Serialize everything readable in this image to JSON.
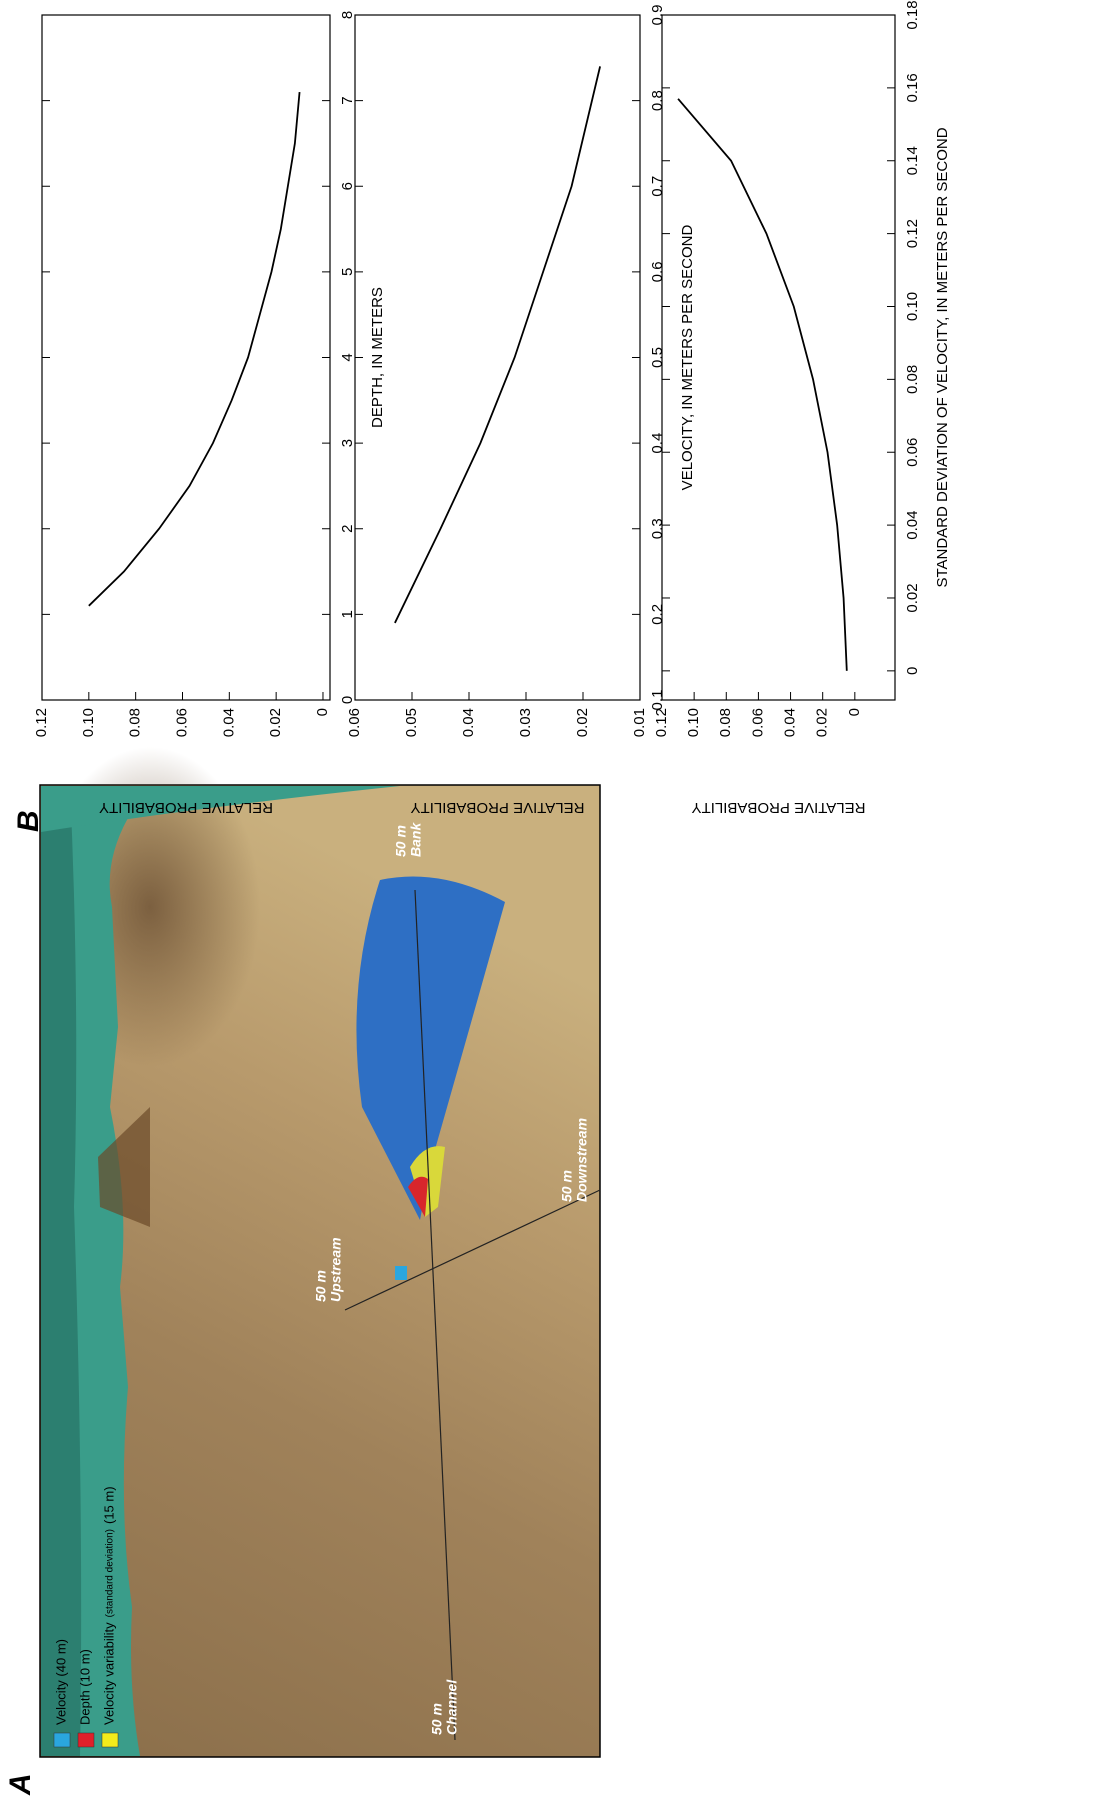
{
  "panel_a": {
    "label": "A",
    "legend": [
      {
        "parts": [
          "Velocity (40 m)"
        ],
        "color": "#2aa6df"
      },
      {
        "parts": [
          "Depth (10 m)"
        ],
        "color": "#e0202a"
      },
      {
        "parts": [
          "Velocity variability",
          "(standard deviation)",
          "(15 m)"
        ],
        "color": "#f2ec1c"
      }
    ],
    "annotations": [
      {
        "lines": [
          "50 m",
          "Channel"
        ]
      },
      {
        "lines": [
          "50 m",
          "Upstream"
        ]
      },
      {
        "lines": [
          "50 m",
          "Downstream"
        ]
      },
      {
        "lines": [
          "50 m",
          "Bank"
        ]
      }
    ]
  },
  "panel_b": {
    "label": "B"
  },
  "chart_data": [
    {
      "type": "line",
      "xlabel": "DEPTH, IN METERS",
      "ylabel": "RELATIVE PROBABILITY",
      "color": "#000000",
      "x": [
        1.1,
        1.5,
        2,
        2.5,
        3,
        3.5,
        4,
        4.5,
        5,
        5.5,
        6,
        6.5,
        7.1
      ],
      "values": [
        0.1,
        0.085,
        0.07,
        0.057,
        0.047,
        0.039,
        0.032,
        0.027,
        0.022,
        0.018,
        0.015,
        0.012,
        0.01
      ],
      "xlim": [
        0,
        8
      ],
      "xticks": [
        0,
        1,
        2,
        3,
        4,
        5,
        6,
        7,
        8
      ],
      "ylim": [
        -0.003,
        0.12
      ],
      "yticks": [
        0,
        0.02,
        0.04,
        0.06,
        0.08,
        {
          "value": 0.1,
          "label": "0.10"
        },
        0.12
      ]
    },
    {
      "type": "line",
      "xlabel": "VELOCITY, IN METERS PER SECOND",
      "ylabel": "RELATIVE PROBABILITY",
      "color": "#000000",
      "x": [
        0.19,
        0.3,
        0.4,
        0.5,
        0.6,
        0.7,
        0.84
      ],
      "values": [
        0.053,
        0.045,
        0.038,
        0.032,
        0.027,
        0.022,
        0.017
      ],
      "xlim": [
        0.1,
        0.9
      ],
      "xticks": [
        0.1,
        0.2,
        0.3,
        0.4,
        0.5,
        0.6,
        0.7,
        0.8,
        0.9
      ],
      "ylim": [
        0.01,
        0.06
      ],
      "yticks": [
        0.01,
        0.02,
        0.03,
        0.04,
        0.05,
        0.06
      ]
    },
    {
      "type": "line",
      "xlabel": "STANDARD DEVIATION OF VELOCITY, IN METERS PER SECOND",
      "ylabel": "RELATIVE PROBABILITY",
      "color": "#000000",
      "x": [
        0,
        0.02,
        0.04,
        0.06,
        0.08,
        0.1,
        0.12,
        0.14,
        0.157
      ],
      "values": [
        0.005,
        0.007,
        0.011,
        0.017,
        0.026,
        0.038,
        0.055,
        0.077,
        0.11
      ],
      "xlim": [
        -0.008,
        0.18
      ],
      "xticks": [
        0,
        0.02,
        0.04,
        0.06,
        0.08,
        {
          "value": 0.1,
          "label": "0.10"
        },
        0.12,
        0.14,
        0.16,
        0.18
      ],
      "ylim": [
        -0.025,
        0.12
      ],
      "yticks": [
        0,
        0.02,
        0.04,
        0.06,
        0.08,
        {
          "value": 0.1,
          "label": "0.10"
        },
        0.12
      ]
    }
  ]
}
